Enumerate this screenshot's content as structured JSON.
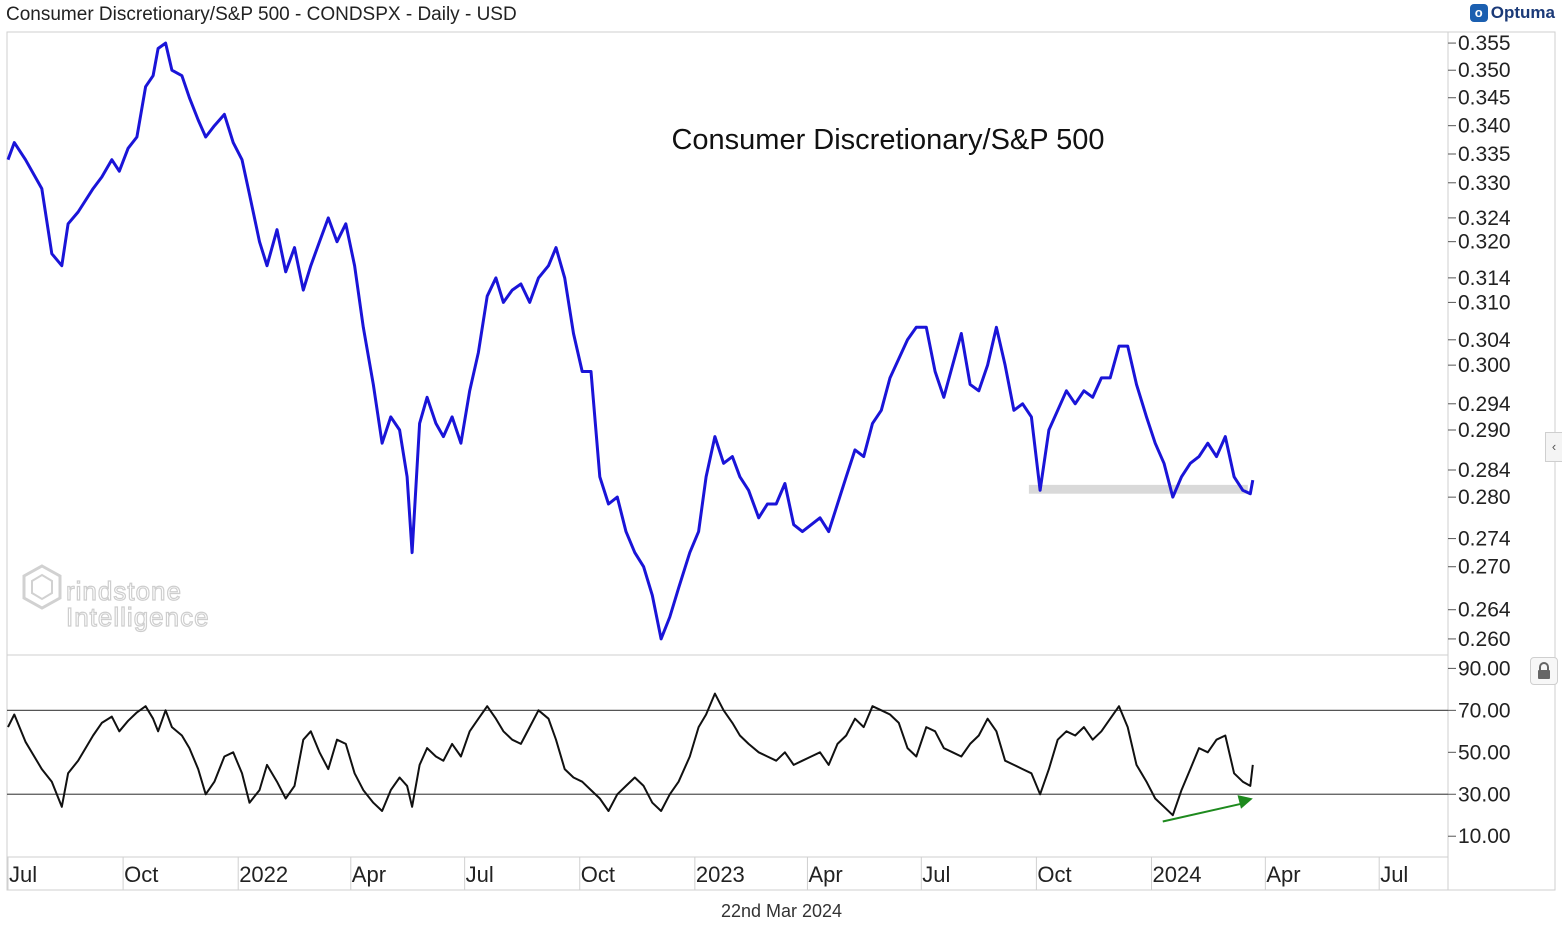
{
  "header": {
    "title": "Consumer Discretionary/S&P 500 - CONDSPX - Daily - USD",
    "brand": "Optuma"
  },
  "footer": {
    "date": "22nd Mar 2024"
  },
  "watermark": {
    "line1": "rindstone",
    "line2": "Intelligence"
  },
  "colors": {
    "price_line": "#1a14d8",
    "oscillator_line": "#111111",
    "support_band": "#d9d9d9",
    "arrow": "#1e8a1e",
    "grid_ref": "#555555"
  },
  "icons": {
    "lock": "lock-icon",
    "side_tab": "chevron-left-icon"
  },
  "chart_data": [
    {
      "type": "line",
      "title": "Consumer Discretionary/S&P 500",
      "xlabel": "",
      "ylabel": "",
      "scale": "log",
      "grid": false,
      "yticks": [
        "0.355",
        "0.350",
        "0.345",
        "0.340",
        "0.335",
        "0.330",
        "0.324",
        "0.320",
        "0.314",
        "0.310",
        "0.304",
        "0.300",
        "0.294",
        "0.290",
        "0.284",
        "0.280",
        "0.274",
        "0.270",
        "0.264",
        "0.260"
      ],
      "ylim": [
        0.2585,
        0.3565
      ],
      "xticks": [
        "Jul",
        "Oct",
        "2022",
        "Apr",
        "Jul",
        "Oct",
        "2023",
        "Apr",
        "Jul",
        "Oct",
        "2024",
        "Apr",
        "Jul"
      ],
      "xlim": [
        "2021-07-01",
        "2024-08-25"
      ],
      "support_zone": {
        "x": [
          "2023-09-25",
          "2024-03-18"
        ],
        "y": [
          0.2805,
          0.2818
        ]
      },
      "series": [
        {
          "x": [
            "2021-07-01",
            "2021-07-06",
            "2021-07-15",
            "2021-07-28",
            "2021-08-05",
            "2021-08-13",
            "2021-08-18",
            "2021-08-26",
            "2021-09-07",
            "2021-09-14",
            "2021-09-22",
            "2021-09-28",
            "2021-10-05",
            "2021-10-12",
            "2021-10-19",
            "2021-10-25",
            "2021-10-29",
            "2021-11-04",
            "2021-11-09",
            "2021-11-17",
            "2021-11-23",
            "2021-11-30",
            "2021-12-06",
            "2021-12-13",
            "2021-12-21",
            "2021-12-28",
            "2022-01-04",
            "2022-01-10",
            "2022-01-18",
            "2022-01-24",
            "2022-02-01",
            "2022-02-08",
            "2022-02-15",
            "2022-02-22",
            "2022-02-28",
            "2022-03-07",
            "2022-03-14",
            "2022-03-21",
            "2022-03-28",
            "2022-04-04",
            "2022-04-11",
            "2022-04-19",
            "2022-04-26",
            "2022-05-03",
            "2022-05-10",
            "2022-05-16",
            "2022-05-20",
            "2022-05-26",
            "2022-06-01",
            "2022-06-08",
            "2022-06-14",
            "2022-06-21",
            "2022-06-28",
            "2022-07-05",
            "2022-07-12",
            "2022-07-19",
            "2022-07-26",
            "2022-08-01",
            "2022-08-08",
            "2022-08-15",
            "2022-08-22",
            "2022-08-29",
            "2022-09-06",
            "2022-09-12",
            "2022-09-19",
            "2022-09-26",
            "2022-10-03",
            "2022-10-10",
            "2022-10-17",
            "2022-10-24",
            "2022-10-31",
            "2022-11-07",
            "2022-11-14",
            "2022-11-21",
            "2022-11-28",
            "2022-12-05",
            "2022-12-12",
            "2022-12-19",
            "2022-12-28",
            "2023-01-04",
            "2023-01-10",
            "2023-01-17",
            "2023-01-24",
            "2023-01-31",
            "2023-02-06",
            "2023-02-13",
            "2023-02-21",
            "2023-02-28",
            "2023-03-07",
            "2023-03-14",
            "2023-03-21",
            "2023-03-28",
            "2023-04-04",
            "2023-04-11",
            "2023-04-18",
            "2023-04-25",
            "2023-05-02",
            "2023-05-09",
            "2023-05-16",
            "2023-05-23",
            "2023-05-30",
            "2023-06-06",
            "2023-06-13",
            "2023-06-20",
            "2023-06-27",
            "2023-07-05",
            "2023-07-12",
            "2023-07-19",
            "2023-07-26",
            "2023-08-02",
            "2023-08-09",
            "2023-08-16",
            "2023-08-23",
            "2023-08-30",
            "2023-09-06",
            "2023-09-13",
            "2023-09-20",
            "2023-09-27",
            "2023-10-04",
            "2023-10-11",
            "2023-10-18",
            "2023-10-25",
            "2023-11-01",
            "2023-11-08",
            "2023-11-15",
            "2023-11-22",
            "2023-11-29",
            "2023-12-06",
            "2023-12-13",
            "2023-12-20",
            "2023-12-28",
            "2024-01-04",
            "2024-01-11",
            "2024-01-18",
            "2024-01-25",
            "2024-02-01",
            "2024-02-08",
            "2024-02-15",
            "2024-02-22",
            "2024-02-29",
            "2024-03-07",
            "2024-03-14",
            "2024-03-20",
            "2024-03-22"
          ],
          "values": [
            0.334,
            0.337,
            0.334,
            0.329,
            0.318,
            0.316,
            0.323,
            0.325,
            0.329,
            0.331,
            0.334,
            0.332,
            0.336,
            0.338,
            0.347,
            0.349,
            0.354,
            0.355,
            0.35,
            0.349,
            0.345,
            0.341,
            0.338,
            0.34,
            0.342,
            0.337,
            0.334,
            0.328,
            0.32,
            0.316,
            0.322,
            0.315,
            0.319,
            0.312,
            0.316,
            0.32,
            0.324,
            0.32,
            0.323,
            0.316,
            0.306,
            0.297,
            0.288,
            0.292,
            0.29,
            0.283,
            0.272,
            0.291,
            0.295,
            0.291,
            0.289,
            0.292,
            0.288,
            0.296,
            0.302,
            0.311,
            0.314,
            0.31,
            0.312,
            0.313,
            0.31,
            0.314,
            0.316,
            0.319,
            0.314,
            0.305,
            0.299,
            0.299,
            0.283,
            0.279,
            0.28,
            0.275,
            0.272,
            0.27,
            0.266,
            0.26,
            0.263,
            0.267,
            0.272,
            0.275,
            0.283,
            0.289,
            0.285,
            0.286,
            0.283,
            0.281,
            0.277,
            0.279,
            0.279,
            0.282,
            0.276,
            0.275,
            0.276,
            0.277,
            0.275,
            0.279,
            0.283,
            0.287,
            0.286,
            0.291,
            0.293,
            0.298,
            0.301,
            0.304,
            0.306,
            0.306,
            0.299,
            0.295,
            0.3,
            0.305,
            0.297,
            0.296,
            0.3,
            0.306,
            0.3,
            0.293,
            0.294,
            0.292,
            0.281,
            0.29,
            0.293,
            0.296,
            0.294,
            0.296,
            0.295,
            0.298,
            0.298,
            0.303,
            0.303,
            0.297,
            0.292,
            0.288,
            0.285,
            0.28,
            0.283,
            0.285,
            0.286,
            0.288,
            0.286,
            0.289,
            0.283,
            0.281,
            0.2805,
            0.2825
          ]
        }
      ]
    },
    {
      "type": "line",
      "title": "",
      "xlabel": "",
      "ylabel": "",
      "grid": false,
      "yticks": [
        "90.00",
        "70.00",
        "50.00",
        "30.00",
        "10.00"
      ],
      "ylim": [
        2,
        94
      ],
      "reference_lines": [
        70,
        30
      ],
      "xlim": [
        "2021-07-01",
        "2024-08-25"
      ],
      "annotations": [
        {
          "type": "arrow",
          "color": "#1e8a1e",
          "from": {
            "x": "2024-01-10",
            "y": 17
          },
          "to": {
            "x": "2024-03-22",
            "y": 28
          }
        }
      ],
      "series": [
        {
          "x": [
            "2021-07-01",
            "2021-07-06",
            "2021-07-15",
            "2021-07-28",
            "2021-08-05",
            "2021-08-13",
            "2021-08-18",
            "2021-08-26",
            "2021-09-07",
            "2021-09-14",
            "2021-09-22",
            "2021-09-28",
            "2021-10-05",
            "2021-10-12",
            "2021-10-19",
            "2021-10-25",
            "2021-10-29",
            "2021-11-04",
            "2021-11-09",
            "2021-11-17",
            "2021-11-23",
            "2021-11-30",
            "2021-12-06",
            "2021-12-13",
            "2021-12-21",
            "2021-12-28",
            "2022-01-04",
            "2022-01-10",
            "2022-01-18",
            "2022-01-24",
            "2022-02-01",
            "2022-02-08",
            "2022-02-15",
            "2022-02-22",
            "2022-02-28",
            "2022-03-07",
            "2022-03-14",
            "2022-03-21",
            "2022-03-28",
            "2022-04-04",
            "2022-04-11",
            "2022-04-19",
            "2022-04-26",
            "2022-05-03",
            "2022-05-10",
            "2022-05-16",
            "2022-05-20",
            "2022-05-26",
            "2022-06-01",
            "2022-06-08",
            "2022-06-14",
            "2022-06-21",
            "2022-06-28",
            "2022-07-05",
            "2022-07-12",
            "2022-07-19",
            "2022-07-26",
            "2022-08-01",
            "2022-08-08",
            "2022-08-15",
            "2022-08-22",
            "2022-08-29",
            "2022-09-06",
            "2022-09-12",
            "2022-09-19",
            "2022-09-26",
            "2022-10-03",
            "2022-10-10",
            "2022-10-17",
            "2022-10-24",
            "2022-10-31",
            "2022-11-07",
            "2022-11-14",
            "2022-11-21",
            "2022-11-28",
            "2022-12-05",
            "2022-12-12",
            "2022-12-19",
            "2022-12-28",
            "2023-01-04",
            "2023-01-10",
            "2023-01-17",
            "2023-01-24",
            "2023-01-31",
            "2023-02-06",
            "2023-02-13",
            "2023-02-21",
            "2023-02-28",
            "2023-03-07",
            "2023-03-14",
            "2023-03-21",
            "2023-03-28",
            "2023-04-04",
            "2023-04-11",
            "2023-04-18",
            "2023-04-25",
            "2023-05-02",
            "2023-05-09",
            "2023-05-16",
            "2023-05-23",
            "2023-05-30",
            "2023-06-06",
            "2023-06-13",
            "2023-06-20",
            "2023-06-27",
            "2023-07-05",
            "2023-07-12",
            "2023-07-19",
            "2023-07-26",
            "2023-08-02",
            "2023-08-09",
            "2023-08-16",
            "2023-08-23",
            "2023-08-30",
            "2023-09-06",
            "2023-09-13",
            "2023-09-20",
            "2023-09-27",
            "2023-10-04",
            "2023-10-11",
            "2023-10-18",
            "2023-10-25",
            "2023-11-01",
            "2023-11-08",
            "2023-11-15",
            "2023-11-22",
            "2023-11-29",
            "2023-12-06",
            "2023-12-13",
            "2023-12-20",
            "2023-12-28",
            "2024-01-04",
            "2024-01-11",
            "2024-01-18",
            "2024-01-25",
            "2024-02-01",
            "2024-02-08",
            "2024-02-15",
            "2024-02-22",
            "2024-02-29",
            "2024-03-07",
            "2024-03-14",
            "2024-03-20",
            "2024-03-22"
          ],
          "values": [
            62,
            68,
            55,
            42,
            36,
            24,
            40,
            46,
            58,
            64,
            67,
            60,
            65,
            69,
            72,
            66,
            60,
            70,
            62,
            58,
            52,
            42,
            30,
            36,
            48,
            50,
            40,
            26,
            32,
            44,
            36,
            28,
            34,
            56,
            60,
            50,
            42,
            56,
            54,
            40,
            32,
            26,
            22,
            32,
            38,
            34,
            24,
            44,
            52,
            48,
            46,
            54,
            48,
            60,
            66,
            72,
            66,
            60,
            56,
            54,
            62,
            70,
            66,
            56,
            42,
            38,
            36,
            32,
            28,
            22,
            30,
            34,
            38,
            34,
            26,
            22,
            30,
            36,
            48,
            62,
            68,
            78,
            70,
            64,
            58,
            54,
            50,
            48,
            46,
            50,
            44,
            46,
            48,
            50,
            44,
            54,
            58,
            66,
            62,
            72,
            70,
            68,
            64,
            52,
            48,
            62,
            60,
            52,
            50,
            48,
            54,
            58,
            66,
            60,
            46,
            44,
            42,
            40,
            30,
            42,
            56,
            60,
            58,
            62,
            56,
            60,
            66,
            72,
            62,
            44,
            36,
            28,
            24,
            20,
            32,
            42,
            52,
            50,
            56,
            58,
            40,
            36,
            34,
            44
          ]
        }
      ]
    }
  ]
}
